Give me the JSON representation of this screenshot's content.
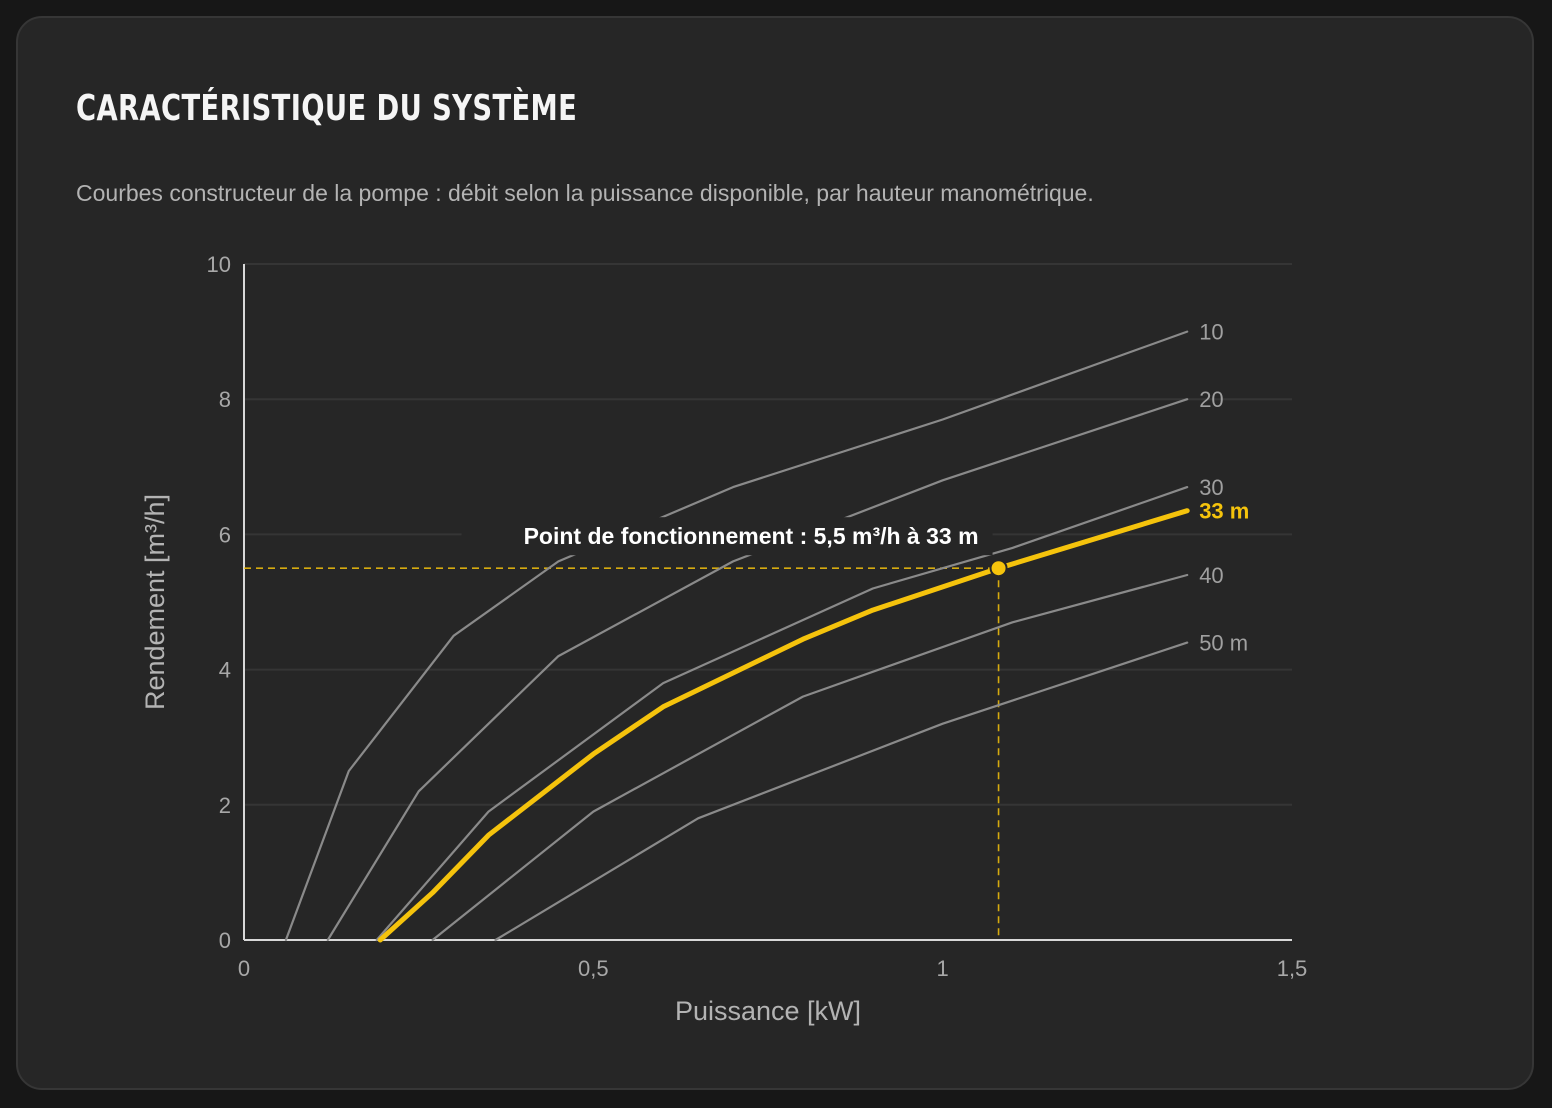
{
  "card": {
    "title": "CARACTÉRISTIQUE DU SYSTÈME",
    "subtitle": "Courbes constructeur de la pompe : débit selon la puissance disponible, par hauteur manométrique."
  },
  "chart_data": {
    "type": "line",
    "title": "",
    "xlabel": "Puissance [kW]",
    "ylabel": "Rendement [m³/h]",
    "xlim": [
      0,
      1.5
    ],
    "ylim": [
      0,
      10
    ],
    "x_ticks": [
      {
        "value": 0,
        "label": "0"
      },
      {
        "value": 0.5,
        "label": "0,5"
      },
      {
        "value": 1,
        "label": "1"
      },
      {
        "value": 1.5,
        "label": "1,5"
      }
    ],
    "y_ticks": [
      {
        "value": 0,
        "label": "0"
      },
      {
        "value": 2,
        "label": "2"
      },
      {
        "value": 4,
        "label": "4"
      },
      {
        "value": 6,
        "label": "6"
      },
      {
        "value": 8,
        "label": "8"
      },
      {
        "value": 10,
        "label": "10"
      }
    ],
    "grid": "horizontal",
    "series": [
      {
        "name": "10",
        "highlight": false,
        "points": [
          [
            0.06,
            0
          ],
          [
            0.15,
            2.5
          ],
          [
            0.3,
            4.5
          ],
          [
            0.45,
            5.6
          ],
          [
            0.7,
            6.7
          ],
          [
            1.0,
            7.7
          ],
          [
            1.35,
            9.0
          ]
        ]
      },
      {
        "name": "20",
        "highlight": false,
        "points": [
          [
            0.12,
            0
          ],
          [
            0.25,
            2.2
          ],
          [
            0.45,
            4.2
          ],
          [
            0.7,
            5.6
          ],
          [
            1.0,
            6.8
          ],
          [
            1.35,
            8.0
          ]
        ]
      },
      {
        "name": "30",
        "highlight": false,
        "points": [
          [
            0.19,
            0
          ],
          [
            0.35,
            1.9
          ],
          [
            0.6,
            3.8
          ],
          [
            0.9,
            5.2
          ],
          [
            1.1,
            5.8
          ],
          [
            1.35,
            6.7
          ]
        ]
      },
      {
        "name": "33 m",
        "highlight": true,
        "points": [
          [
            0.195,
            0
          ],
          [
            0.27,
            0.7
          ],
          [
            0.35,
            1.55
          ],
          [
            0.5,
            2.75
          ],
          [
            0.6,
            3.45
          ],
          [
            0.8,
            4.45
          ],
          [
            0.9,
            4.88
          ],
          [
            1.08,
            5.5
          ],
          [
            1.35,
            6.35
          ]
        ]
      },
      {
        "name": "40",
        "highlight": false,
        "points": [
          [
            0.27,
            0
          ],
          [
            0.5,
            1.9
          ],
          [
            0.8,
            3.6
          ],
          [
            1.1,
            4.7
          ],
          [
            1.35,
            5.4
          ]
        ]
      },
      {
        "name": "50 m",
        "highlight": false,
        "points": [
          [
            0.36,
            0
          ],
          [
            0.65,
            1.8
          ],
          [
            1.0,
            3.2
          ],
          [
            1.35,
            4.4
          ]
        ]
      }
    ],
    "operating_point": {
      "x": 1.08,
      "y": 5.5,
      "label": "Point de fonctionnement : 5,5 m³/h à 33 m"
    },
    "colors": {
      "highlight": "#f5c30c",
      "curve": "#8a8a8a",
      "grid": "#353535",
      "axis": "#d8d8d8"
    }
  }
}
